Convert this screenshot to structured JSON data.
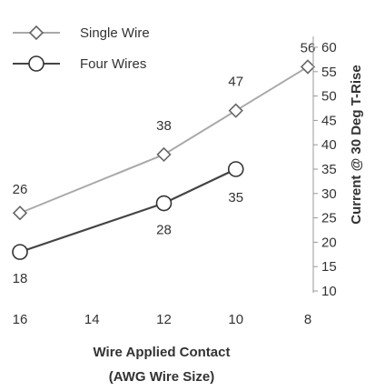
{
  "chart_data": {
    "type": "line",
    "xlabel_line1": "Wire Applied Contact",
    "xlabel_line2": "(AWG Wire Size)",
    "ylabel": "Current @ 30 Deg T-Rise",
    "x_ticks": [
      "16",
      "14",
      "12",
      "10",
      "8"
    ],
    "xlim": [
      16,
      8
    ],
    "y_ticks": [
      "10",
      "15",
      "20",
      "25",
      "30",
      "35",
      "40",
      "45",
      "50",
      "55",
      "60"
    ],
    "ylim": [
      10,
      60
    ],
    "grid": false,
    "legend_position": "top-left",
    "series": [
      {
        "name": "Single Wire",
        "marker": "diamond",
        "color": "#a9a9a9",
        "x": [
          16,
          12,
          10,
          8
        ],
        "y": [
          26,
          38,
          47,
          56
        ],
        "labels": [
          "26",
          "38",
          "47",
          "56"
        ]
      },
      {
        "name": "Four Wires",
        "marker": "circle",
        "color": "#444444",
        "x": [
          16,
          12,
          10
        ],
        "y": [
          18,
          28,
          35
        ],
        "labels": [
          "18",
          "28",
          "35"
        ]
      }
    ]
  }
}
